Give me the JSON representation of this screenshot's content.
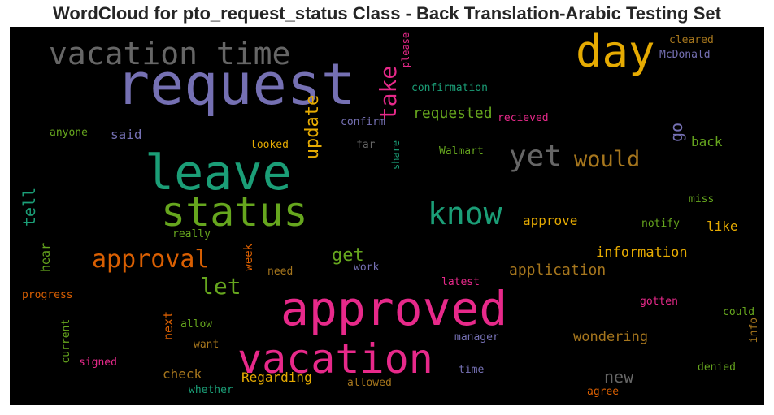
{
  "chart_data": {
    "type": "wordcloud",
    "title": "WordCloud for pto_request_status Class - Back Translation-Arabic Testing Set",
    "background": "#000000",
    "words": [
      {
        "text": "request",
        "color": "#7570b3"
      },
      {
        "text": "approved",
        "color": "#e7298a"
      },
      {
        "text": "leave",
        "color": "#1b9e77"
      },
      {
        "text": "status",
        "color": "#66a61e"
      },
      {
        "text": "vacation",
        "color": "#e7298a"
      },
      {
        "text": "day",
        "color": "#e6ab02"
      },
      {
        "text": "vacation time",
        "color": "#666666"
      },
      {
        "text": "know",
        "color": "#1b9e77"
      },
      {
        "text": "yet",
        "color": "#666666"
      },
      {
        "text": "approval",
        "color": "#d95f02"
      },
      {
        "text": "take",
        "color": "#e7298a"
      },
      {
        "text": "let",
        "color": "#66a61e"
      },
      {
        "text": "would",
        "color": "#a6761d"
      },
      {
        "text": "update",
        "color": "#e6ab02"
      },
      {
        "text": "new",
        "color": "#666666"
      },
      {
        "text": "get",
        "color": "#66a61e"
      },
      {
        "text": "tell",
        "color": "#1b9e77"
      },
      {
        "text": "requested",
        "color": "#66a61e"
      },
      {
        "text": "go",
        "color": "#7570b3"
      },
      {
        "text": "application",
        "color": "#a6761d"
      },
      {
        "text": "information",
        "color": "#e6ab02"
      },
      {
        "text": "wondering",
        "color": "#a6761d"
      },
      {
        "text": "approve",
        "color": "#e6ab02"
      },
      {
        "text": "Regarding",
        "color": "#e6ab02"
      },
      {
        "text": "check",
        "color": "#a6761d"
      },
      {
        "text": "back",
        "color": "#66a61e"
      },
      {
        "text": "like",
        "color": "#e6ab02"
      },
      {
        "text": "said",
        "color": "#7570b3"
      },
      {
        "text": "hear",
        "color": "#66a61e"
      },
      {
        "text": "next",
        "color": "#d95f02"
      },
      {
        "text": "week",
        "color": "#d95f02"
      },
      {
        "text": "cleared",
        "color": "#a6761d"
      },
      {
        "text": "McDonald",
        "color": "#7570b3"
      },
      {
        "text": "confirmation",
        "color": "#1b9e77"
      },
      {
        "text": "please",
        "color": "#e7298a"
      },
      {
        "text": "recieved",
        "color": "#e7298a"
      },
      {
        "text": "confirm",
        "color": "#7570b3"
      },
      {
        "text": "anyone",
        "color": "#66a61e"
      },
      {
        "text": "looked",
        "color": "#e6ab02"
      },
      {
        "text": "far",
        "color": "#666666"
      },
      {
        "text": "share",
        "color": "#1b9e77"
      },
      {
        "text": "Walmart",
        "color": "#66a61e"
      },
      {
        "text": "miss",
        "color": "#66a61e"
      },
      {
        "text": "notify",
        "color": "#66a61e"
      },
      {
        "text": "really",
        "color": "#66a61e"
      },
      {
        "text": "need",
        "color": "#a6761d"
      },
      {
        "text": "work",
        "color": "#7570b3"
      },
      {
        "text": "latest",
        "color": "#e7298a"
      },
      {
        "text": "progress",
        "color": "#d95f02"
      },
      {
        "text": "allow",
        "color": "#66a61e"
      },
      {
        "text": "gotten",
        "color": "#e7298a"
      },
      {
        "text": "could",
        "color": "#66a61e"
      },
      {
        "text": "current",
        "color": "#66a61e"
      },
      {
        "text": "manager",
        "color": "#7570b3"
      },
      {
        "text": "want",
        "color": "#a6761d"
      },
      {
        "text": "signed",
        "color": "#e7298a"
      },
      {
        "text": "info",
        "color": "#a6761d"
      },
      {
        "text": "time",
        "color": "#7570b3"
      },
      {
        "text": "denied",
        "color": "#66a61e"
      },
      {
        "text": "whether",
        "color": "#1b9e77"
      },
      {
        "text": "allowed",
        "color": "#a6761d"
      },
      {
        "text": "agree",
        "color": "#d95f02"
      }
    ]
  }
}
